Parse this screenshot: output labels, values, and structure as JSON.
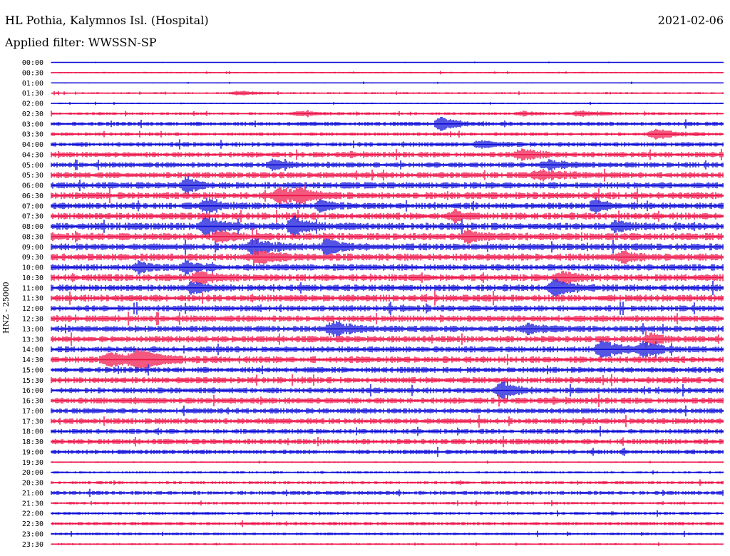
{
  "header": {
    "station": "HL Pothia, Kalymnos Isl. (Hospital)",
    "date": "2021-02-06",
    "filter": "Applied filter: WWSSN-SP"
  },
  "channel_label": "HNZ - 25000",
  "colors": {
    "trace_a": "#0b0bd8",
    "trace_b": "#ee1147"
  },
  "chart_data": {
    "type": "line",
    "subtype": "helicorder",
    "series_colors": [
      "#0b0bd8",
      "#ee1147"
    ],
    "row_labels": [
      "00:00",
      "00:30",
      "01:00",
      "01:30",
      "02:00",
      "02:30",
      "03:00",
      "03:30",
      "04:00",
      "04:30",
      "05:00",
      "05:30",
      "06:00",
      "06:30",
      "07:00",
      "07:30",
      "08:00",
      "08:30",
      "09:00",
      "09:30",
      "10:00",
      "10:30",
      "11:00",
      "11:30",
      "12:00",
      "12:30",
      "13:00",
      "13:30",
      "14:00",
      "14:30",
      "15:00",
      "15:30",
      "16:00",
      "16:30",
      "17:00",
      "17:30",
      "18:00",
      "18:30",
      "19:00",
      "19:30",
      "20:00",
      "20:30",
      "21:00",
      "21:30",
      "22:00",
      "22:30",
      "23:00",
      "23:30"
    ],
    "noise_level": [
      0.4,
      0.8,
      0.6,
      1.0,
      0.8,
      1.4,
      2.2,
      1.8,
      2.4,
      2.8,
      2.8,
      3.2,
      3.4,
      3.6,
      3.4,
      3.6,
      3.8,
      3.8,
      3.6,
      3.8,
      3.4,
      3.6,
      3.4,
      3.6,
      3.2,
      3.4,
      3.2,
      3.4,
      3.2,
      3.4,
      3.0,
      3.2,
      3.0,
      3.2,
      2.8,
      3.0,
      2.6,
      2.8,
      2.4,
      0.8,
      1.2,
      1.6,
      2.0,
      1.4,
      1.6,
      1.8,
      1.4,
      1.0
    ],
    "events": [
      {
        "row": 6,
        "x": 0.58,
        "amp": 11,
        "width": 0.012
      },
      {
        "row": 7,
        "x": 0.9,
        "amp": 7,
        "width": 0.015
      },
      {
        "row": 9,
        "x": 0.7,
        "amp": 7,
        "width": 0.015
      },
      {
        "row": 10,
        "x": 0.33,
        "amp": 7,
        "width": 0.012
      },
      {
        "row": 10,
        "x": 0.74,
        "amp": 6,
        "width": 0.015
      },
      {
        "row": 12,
        "x": 0.2,
        "amp": 11,
        "width": 0.01
      },
      {
        "row": 13,
        "x": 0.34,
        "amp": 13,
        "width": 0.012
      },
      {
        "row": 13,
        "x": 0.37,
        "amp": 11,
        "width": 0.01
      },
      {
        "row": 14,
        "x": 0.23,
        "amp": 9,
        "width": 0.012
      },
      {
        "row": 14,
        "x": 0.4,
        "amp": 8,
        "width": 0.01
      },
      {
        "row": 14,
        "x": 0.81,
        "amp": 8,
        "width": 0.012
      },
      {
        "row": 15,
        "x": 0.6,
        "amp": 6,
        "width": 0.01
      },
      {
        "row": 16,
        "x": 0.23,
        "amp": 12,
        "width": 0.014
      },
      {
        "row": 16,
        "x": 0.36,
        "amp": 14,
        "width": 0.012
      },
      {
        "row": 16,
        "x": 0.84,
        "amp": 8,
        "width": 0.01
      },
      {
        "row": 17,
        "x": 0.25,
        "amp": 7,
        "width": 0.012
      },
      {
        "row": 17,
        "x": 0.62,
        "amp": 7,
        "width": 0.014
      },
      {
        "row": 18,
        "x": 0.3,
        "amp": 11,
        "width": 0.014
      },
      {
        "row": 18,
        "x": 0.41,
        "amp": 10,
        "width": 0.012
      },
      {
        "row": 19,
        "x": 0.31,
        "amp": 10,
        "width": 0.012
      },
      {
        "row": 19,
        "x": 0.85,
        "amp": 7,
        "width": 0.01
      },
      {
        "row": 20,
        "x": 0.13,
        "amp": 6,
        "width": 0.012
      },
      {
        "row": 20,
        "x": 0.2,
        "amp": 8,
        "width": 0.012
      },
      {
        "row": 21,
        "x": 0.22,
        "amp": 8,
        "width": 0.014
      },
      {
        "row": 21,
        "x": 0.76,
        "amp": 7,
        "width": 0.012
      },
      {
        "row": 22,
        "x": 0.21,
        "amp": 7,
        "width": 0.012
      },
      {
        "row": 22,
        "x": 0.75,
        "amp": 12,
        "width": 0.014
      },
      {
        "row": 26,
        "x": 0.42,
        "amp": 10,
        "width": 0.014
      },
      {
        "row": 26,
        "x": 0.71,
        "amp": 6,
        "width": 0.014
      },
      {
        "row": 27,
        "x": 0.89,
        "amp": 7,
        "width": 0.01
      },
      {
        "row": 28,
        "x": 0.82,
        "amp": 12,
        "width": 0.014
      },
      {
        "row": 28,
        "x": 0.88,
        "amp": 11,
        "width": 0.012
      },
      {
        "row": 29,
        "x": 0.09,
        "amp": 9,
        "width": 0.02
      },
      {
        "row": 29,
        "x": 0.13,
        "amp": 12,
        "width": 0.018
      },
      {
        "row": 32,
        "x": 0.67,
        "amp": 12,
        "width": 0.012
      },
      {
        "row": 3,
        "x": 0.28,
        "amp": 2.5,
        "width": 0.02
      },
      {
        "row": 5,
        "x": 0.37,
        "amp": 3,
        "width": 0.02
      },
      {
        "row": 5,
        "x": 0.7,
        "amp": 3,
        "width": 0.012
      },
      {
        "row": 5,
        "x": 0.79,
        "amp": 3,
        "width": 0.02
      },
      {
        "row": 8,
        "x": 0.64,
        "amp": 4,
        "width": 0.015
      },
      {
        "row": 11,
        "x": 0.73,
        "amp": 6,
        "width": 0.02
      }
    ]
  }
}
